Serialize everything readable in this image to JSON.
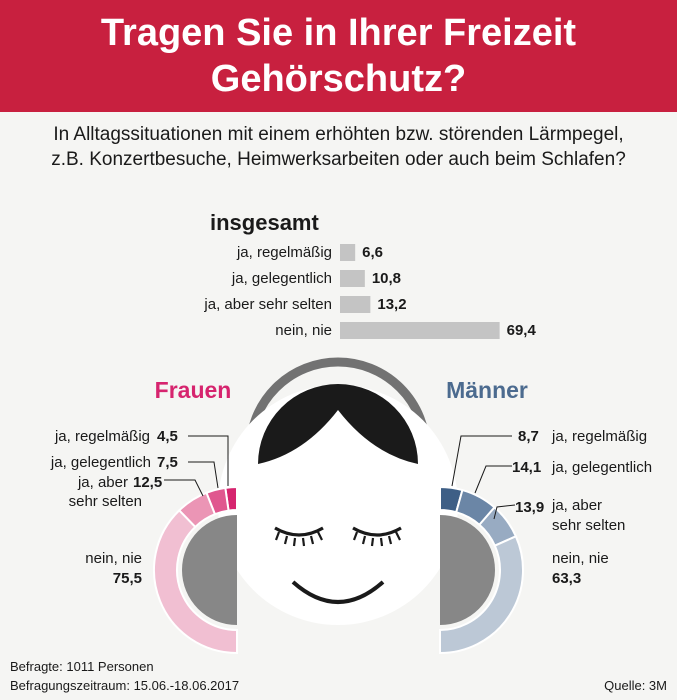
{
  "header": {
    "title_line1": "Tragen Sie in Ihrer Freizeit",
    "title_line2": "Gehörschutz?"
  },
  "subtitle": {
    "line1": "In Alltagssituationen mit einem erhöhten bzw. störenden Lärmpegel,",
    "line2": "z.B. Konzertbesuche, Heimwerksarbeiten oder auch beim Schlafen?"
  },
  "colors": {
    "header_red": "#c8203f",
    "frauen_accent": "#d6246e",
    "maenner_accent": "#4c6b8f",
    "overall_bar": "#c4c4c4"
  },
  "chart_data": [
    {
      "type": "bar",
      "title": "insgesamt",
      "categories": [
        "ja, regelmäßig",
        "ja, gelegentlich",
        "ja, aber sehr selten",
        "nein, nie"
      ],
      "values": [
        6.6,
        10.8,
        13.2,
        69.4
      ],
      "value_labels": [
        "6,6",
        "10,8",
        "13,2",
        "69,4"
      ]
    },
    {
      "type": "pie",
      "title": "Frauen",
      "categories": [
        "ja, regelmäßig",
        "ja, gelegentlich",
        "ja, aber sehr selten",
        "nein, nie"
      ],
      "values": [
        4.5,
        7.5,
        12.5,
        75.5
      ],
      "value_labels": [
        "4,5",
        "7,5",
        "12,5",
        "75,5"
      ],
      "colors": [
        "#d6246e",
        "#e0578f",
        "#eb95b5",
        "#f1bfd2"
      ]
    },
    {
      "type": "pie",
      "title": "Männer",
      "categories": [
        "ja, regelmäßig",
        "ja, gelegentlich",
        "ja, aber sehr selten",
        "nein, nie"
      ],
      "values": [
        8.7,
        14.1,
        13.9,
        63.3
      ],
      "value_labels": [
        "8,7",
        "14,1",
        "13,9",
        "63,3"
      ],
      "colors": [
        "#3e5f86",
        "#6b86a6",
        "#98abc2",
        "#bcc8d6"
      ]
    }
  ],
  "frauen_labels": {
    "regelmaessig": "ja, regelmäßig",
    "gelegentlich": "ja, gelegentlich",
    "selten_1": "ja, aber",
    "selten_2": "sehr selten",
    "nie": "nein, nie"
  },
  "maenner_labels": {
    "regelmaessig": "ja, regelmäßig",
    "gelegentlich": "ja, gelegentlich",
    "selten_1": "ja, aber",
    "selten_2": "sehr selten",
    "nie": "nein, nie"
  },
  "footer": {
    "befragte": "Befragte: 1011 Personen",
    "zeitraum": "Befragungszeitraum: 15.06.-18.06.2017",
    "quelle": "Quelle: 3M"
  }
}
